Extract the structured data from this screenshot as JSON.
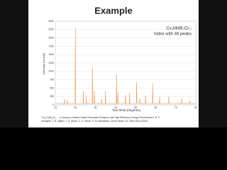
{
  "slide_title": "Example",
  "chart_data": {
    "type": "line",
    "annotations": [
      "Cs₄MnBi₂Cl₁₂",
      "Index with 46 peaks"
    ],
    "x_label": "Two theta (degrees)",
    "y_label": "Intensity (counts)",
    "color": "#e8995a",
    "grid": true,
    "xlim": [
      10,
      80
    ],
    "xticks": [
      10,
      20,
      30,
      40,
      50,
      60,
      70,
      80
    ],
    "ylim": [
      0,
      2500
    ],
    "yticks": [
      0,
      250,
      500,
      750,
      1000,
      1250,
      1500,
      1750,
      2000,
      2250,
      2500
    ],
    "x": [
      10,
      14.35,
      14.5,
      14.65,
      15.85,
      16,
      16.15,
      19.85,
      20,
      20.15,
      23.85,
      24,
      24.15,
      25.35,
      25.5,
      25.65,
      28.35,
      28.5,
      28.65,
      29.35,
      29.5,
      29.65,
      32.85,
      33,
      33.15,
      34.85,
      35,
      35.15,
      40.35,
      40.5,
      40.65,
      41.05,
      41.2,
      41.35,
      44.85,
      45,
      45.15,
      46.85,
      47,
      47.15,
      50.35,
      50.5,
      50.65,
      51.85,
      52,
      52.15,
      54.85,
      55,
      55.15,
      58.35,
      58.5,
      58.65,
      61.85,
      62,
      62.15,
      66.35,
      66.5,
      66.65,
      72.85,
      73,
      73.15,
      76.85,
      77,
      77.15,
      80
    ],
    "values": [
      40,
      40,
      180,
      40,
      40,
      150,
      40,
      40,
      2300,
      40,
      40,
      420,
      40,
      40,
      260,
      40,
      40,
      1120,
      40,
      40,
      430,
      40,
      40,
      180,
      40,
      40,
      420,
      40,
      40,
      900,
      40,
      40,
      380,
      40,
      40,
      300,
      40,
      40,
      350,
      40,
      40,
      700,
      40,
      40,
      200,
      40,
      40,
      280,
      40,
      40,
      650,
      40,
      40,
      250,
      40,
      40,
      250,
      40,
      40,
      200,
      40,
      40,
      120,
      40,
      40
    ]
  },
  "footnote": [
    "\"Cs₄CuSb₂Cl₁₂ ... d Vacancy Ordered Halide Perovskite Phosphor with High Efficiency Orange-Red Emission\" N. P.",
    "Holzapfel, J. B. Majher, T. A. Strom, C. E. Moore, P. M. Woodward, Chem. Mater. 32, 3510-3516 (2020)."
  ]
}
